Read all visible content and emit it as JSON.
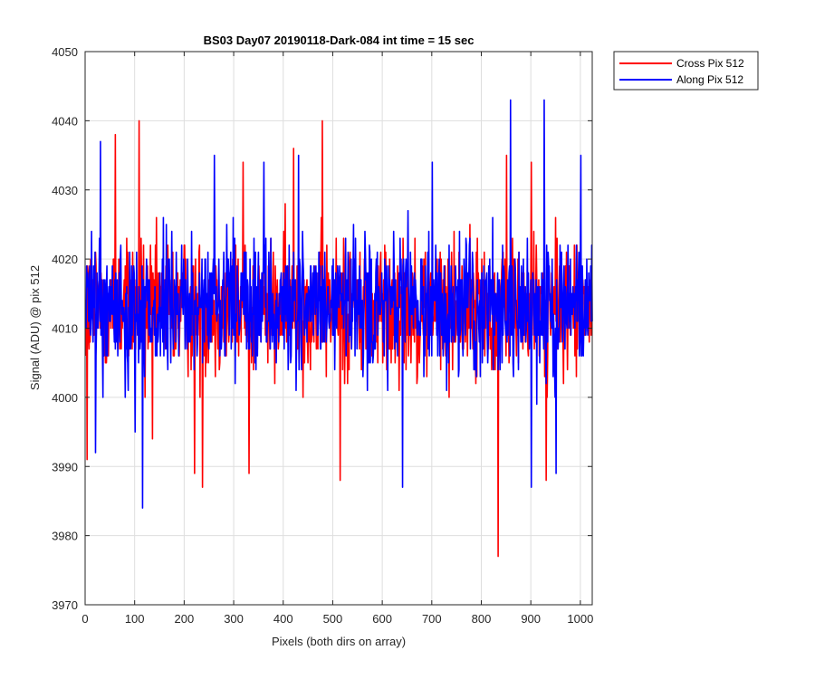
{
  "chart_data": {
    "type": "line",
    "title": "BS03 Day07 20190118-Dark-084 int time = 15 sec",
    "xlabel": "Pixels (both dirs on array)",
    "ylabel": "Signal (ADU) @ pix 512",
    "xlim": [
      0,
      1024
    ],
    "ylim": [
      3970,
      4050
    ],
    "xticks": [
      0,
      100,
      200,
      300,
      400,
      500,
      600,
      700,
      800,
      900,
      1000
    ],
    "yticks": [
      3970,
      3980,
      3990,
      4000,
      4010,
      4020,
      4030,
      4040,
      4050
    ],
    "grid": true,
    "legend_position": "outside-top-right",
    "series": [
      {
        "name": "Cross Pix 512",
        "color": "#ff0000",
        "mean": 4013,
        "spread": 7,
        "points_count": 1024,
        "x": [
          3,
          60,
          108,
          120,
          135,
          220,
          236,
          318,
          330,
          420,
          478,
          514,
          600,
          833,
          850,
          900,
          930
        ],
        "values": [
          3991,
          4038,
          4040,
          4000,
          3994,
          3989,
          3987,
          4034,
          3989,
          4036,
          4040,
          3988,
          4005,
          3977,
          4035,
          4034,
          3988
        ]
      },
      {
        "name": "Along Pix 512",
        "color": "#0000ff",
        "mean": 4013,
        "spread": 7,
        "points_count": 1024,
        "x": [
          20,
          30,
          100,
          115,
          260,
          360,
          430,
          640,
          700,
          858,
          900,
          926,
          950,
          1000
        ],
        "values": [
          3992,
          4037,
          3995,
          3984,
          4035,
          4034,
          4035,
          3987,
          4034,
          4043,
          3987,
          4043,
          3989,
          4035
        ]
      }
    ]
  }
}
